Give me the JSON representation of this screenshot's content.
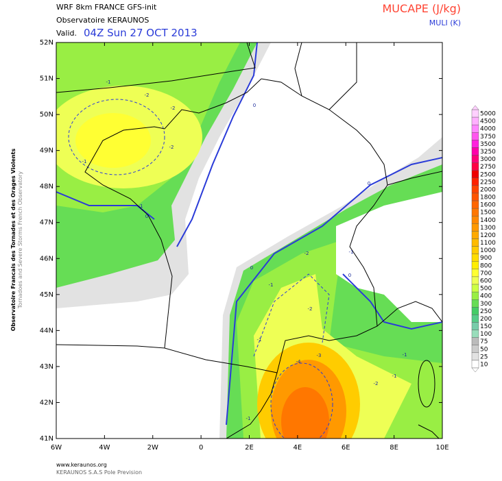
{
  "header": {
    "model": "WRF 8km FRANCE  GFS-init",
    "organization": "Observatoire KERAUNOS",
    "valid_prefix": "Valid.",
    "valid_time": "04Z Sun 27 OCT 2013",
    "field": "MUCAPE (J/kg)",
    "overlay": "MULI (K)"
  },
  "map": {
    "lat_labels": [
      "52N",
      "51N",
      "50N",
      "49N",
      "48N",
      "47N",
      "46N",
      "45N",
      "44N",
      "43N",
      "42N",
      "41N"
    ],
    "lon_labels": [
      "6W",
      "4W",
      "2W",
      "0",
      "2E",
      "4E",
      "6E",
      "8E",
      "10E"
    ],
    "contour_labels": [
      "-1",
      "-2",
      "-2",
      "-2",
      "-1",
      "-1",
      "0",
      "0",
      "-2",
      "-1",
      "0",
      "-2",
      "-1",
      "-1",
      "-4",
      "-3",
      "-2",
      "-1",
      "-1",
      "-1",
      "0",
      "0"
    ]
  },
  "colorbar": {
    "labels": [
      "5000",
      "4500",
      "4000",
      "3750",
      "3500",
      "3250",
      "3000",
      "2750",
      "2500",
      "2250",
      "2000",
      "1800",
      "1600",
      "1500",
      "1400",
      "1300",
      "1200",
      "1100",
      "1000",
      "900",
      "800",
      "700",
      "600",
      "500",
      "400",
      "300",
      "250",
      "200",
      "150",
      "100",
      "75",
      "50",
      "25",
      "10"
    ],
    "colors": [
      "#ffd0ff",
      "#ffb0ff",
      "#ff88ff",
      "#ff55ee",
      "#ff22dd",
      "#ff00aa",
      "#ff0077",
      "#ff0044",
      "#ee0000",
      "#ff2200",
      "#ff4400",
      "#ff5500",
      "#ff6600",
      "#ff7700",
      "#ff8800",
      "#ff9900",
      "#ffaa00",
      "#ffbb00",
      "#ffcc00",
      "#ffdd00",
      "#ffee00",
      "#ffff33",
      "#eeff55",
      "#ccff44",
      "#99ee44",
      "#66dd55",
      "#44cc66",
      "#55cc88",
      "#77ccaa",
      "#99ddbb",
      "#bbbbbb",
      "#cccccc",
      "#e2e2e2",
      "#ffffff"
    ]
  },
  "side_text": {
    "french": "Observatoire Francais des Tornades et des Orages Violents",
    "english": "Tornadoes and Severe Storms French Observatory"
  },
  "footer": {
    "url": "www.keraunos.org",
    "company": "KERAUNOS S.A.S Pole Prevision"
  }
}
